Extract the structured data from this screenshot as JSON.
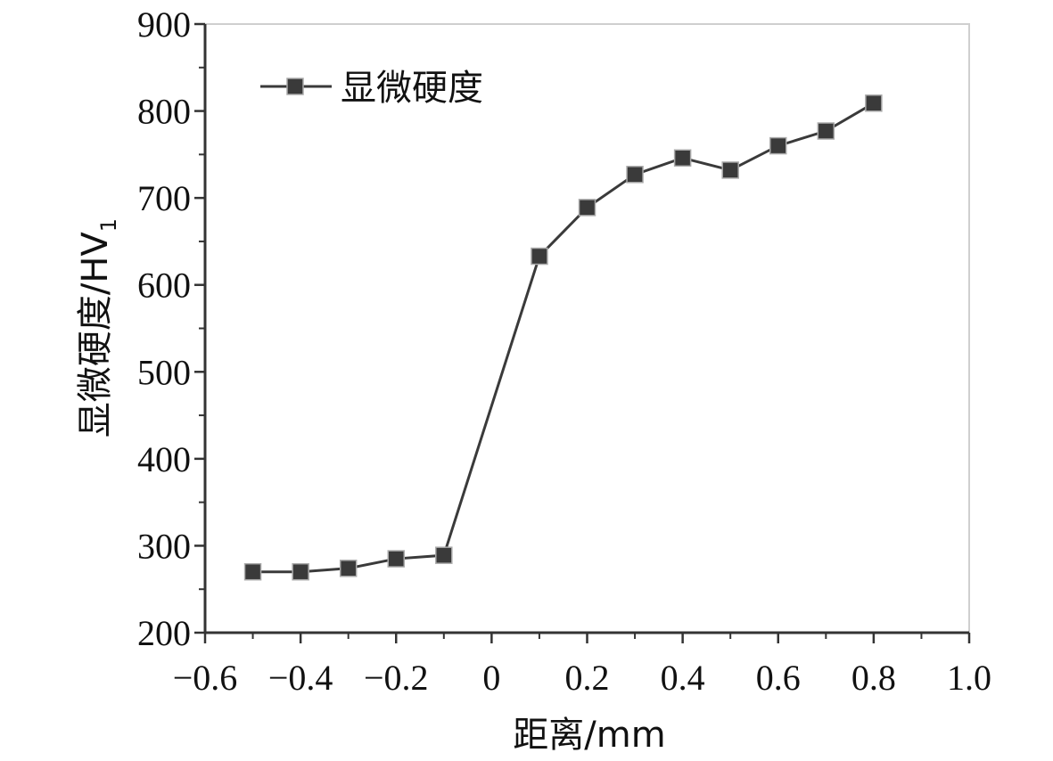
{
  "chart_data": {
    "type": "line",
    "xlabel": "距离/mm",
    "ylabel": "显微硬度/HV",
    "ylabel_subscript": "1",
    "xlim": [
      -0.6,
      1.0
    ],
    "ylim": [
      200,
      900
    ],
    "x_ticks": [
      -0.6,
      -0.4,
      -0.2,
      0,
      0.2,
      0.4,
      0.6,
      0.8,
      1.0
    ],
    "x_tick_labels": [
      "−0.6",
      "−0.4",
      "−0.2",
      "0",
      "0.2",
      "0.4",
      "0.6",
      "0.8",
      "1.0"
    ],
    "y_ticks": [
      200,
      300,
      400,
      500,
      600,
      700,
      800,
      900
    ],
    "y_tick_labels": [
      "200",
      "300",
      "400",
      "500",
      "600",
      "700",
      "800",
      "900"
    ],
    "grid": false,
    "legend_position": "top-left",
    "series": [
      {
        "name": "显微硬度",
        "color": "#3a3a3a",
        "marker": "square",
        "x": [
          -0.5,
          -0.4,
          -0.3,
          -0.2,
          -0.1,
          0.1,
          0.2,
          0.3,
          0.4,
          0.5,
          0.6,
          0.7,
          0.8
        ],
        "y": [
          270,
          270,
          274,
          285,
          289,
          633,
          689,
          727,
          746,
          732,
          760,
          777,
          809
        ]
      }
    ]
  }
}
